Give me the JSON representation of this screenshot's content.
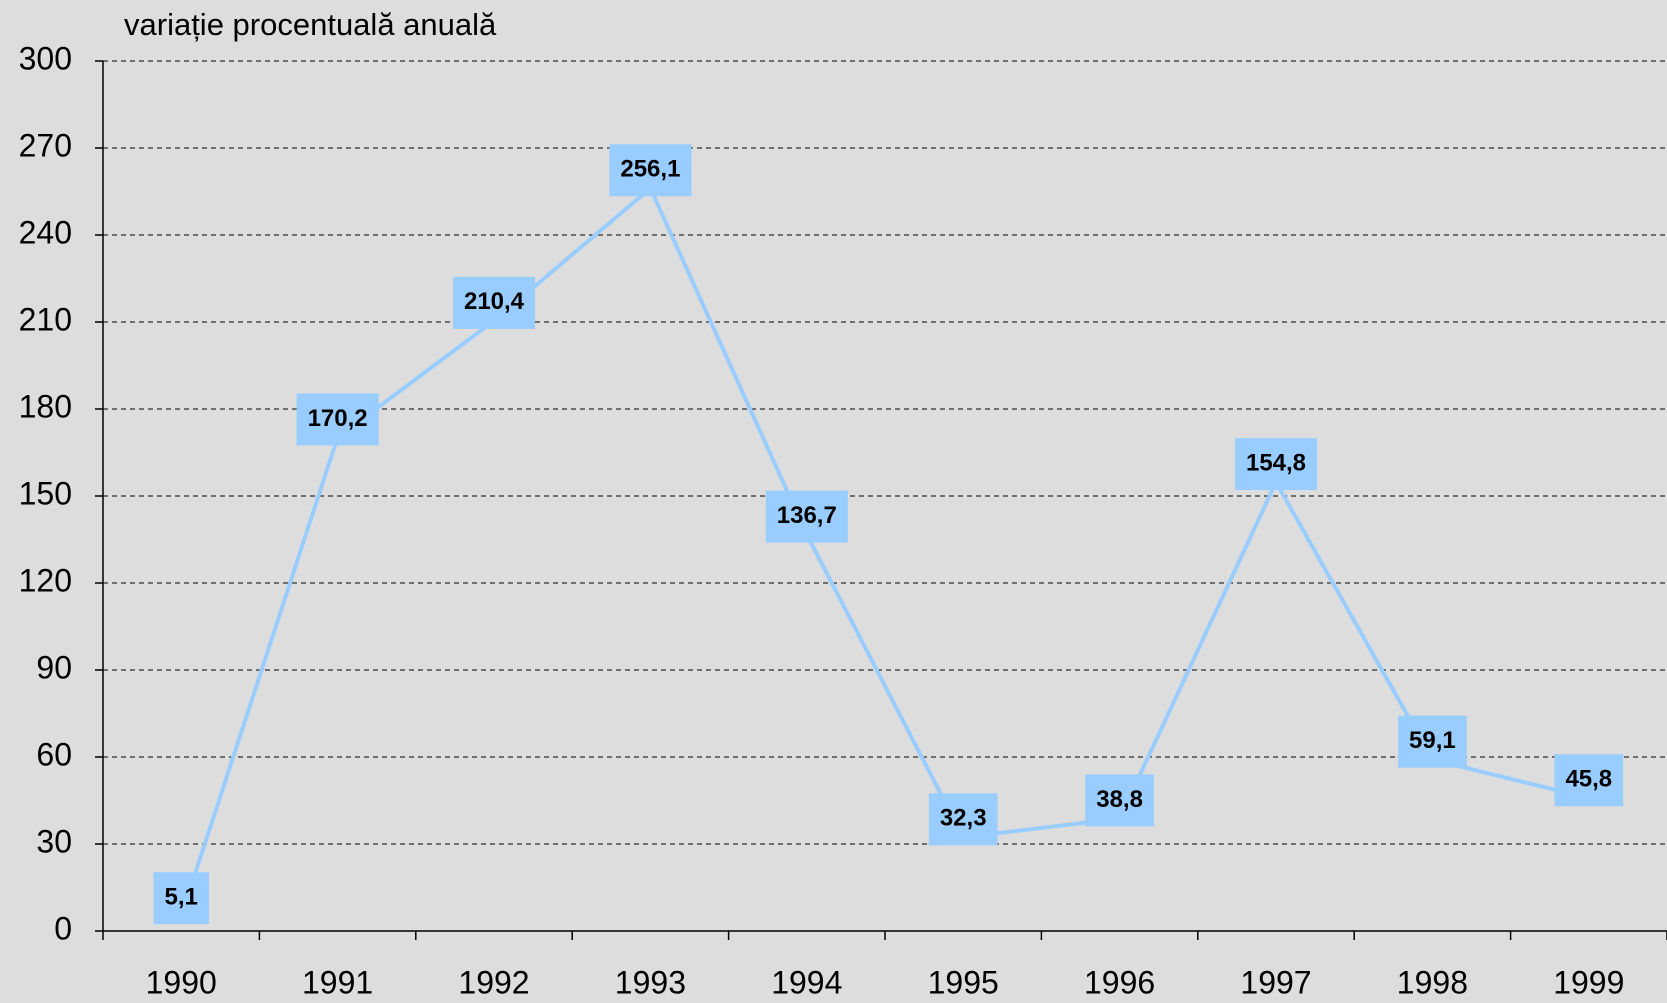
{
  "chart_data": {
    "type": "line",
    "title": "variație procentuală anuală",
    "categories": [
      "1990",
      "1991",
      "1992",
      "1993",
      "1994",
      "1995",
      "1996",
      "1997",
      "1998",
      "1999"
    ],
    "series": [
      {
        "name": "variație procentuală anuală",
        "color": "#99ccff",
        "values": [
          5.1,
          170.2,
          210.4,
          256.1,
          136.7,
          32.3,
          38.8,
          154.8,
          59.1,
          45.8
        ],
        "value_labels": [
          "5,1",
          "170,2",
          "210,4",
          "256,1",
          "136,7",
          "32,3",
          "38,8",
          "154,8",
          "59,1",
          "45,8"
        ]
      }
    ],
    "ylim": [
      0,
      300
    ],
    "yticks": [
      0,
      30,
      60,
      90,
      120,
      150,
      180,
      210,
      240,
      270,
      300
    ],
    "grid": true
  }
}
